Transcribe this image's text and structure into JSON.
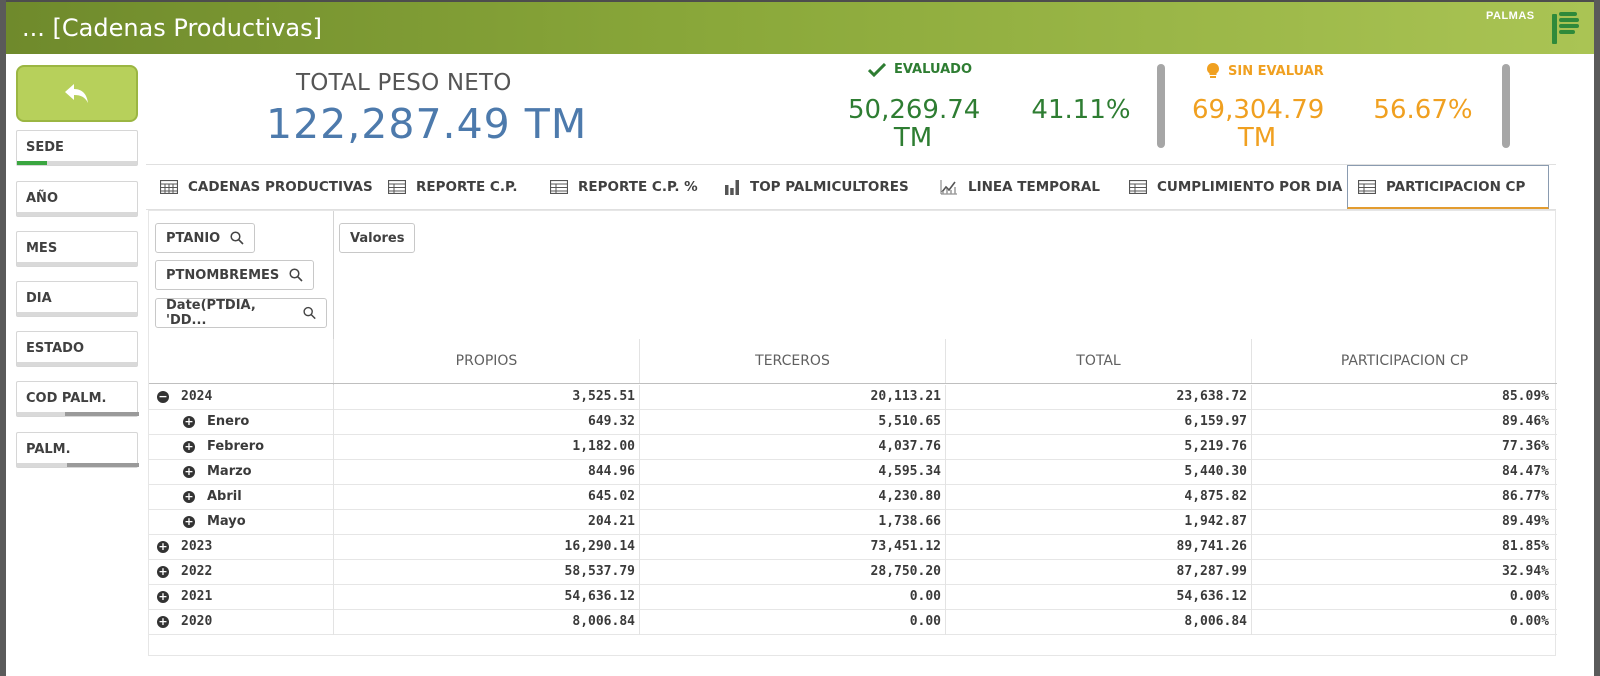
{
  "header": {
    "title": "... [Cadenas Productivas]",
    "brand": "PALMAS"
  },
  "colors": {
    "accent_green": "#b7d05b",
    "kpi_blue": "#4d7aac",
    "evaluado_green": "#2e7d32",
    "sin_evaluar_orange": "#f0a020",
    "tab_active_underline": "#e39c2f"
  },
  "back_button": {
    "icon": "back-arrow-icon"
  },
  "filters": [
    {
      "label": "SEDE"
    },
    {
      "label": "AÑO"
    },
    {
      "label": "MES"
    },
    {
      "label": "DIA"
    },
    {
      "label": "ESTADO"
    },
    {
      "label": "COD PALM."
    },
    {
      "label": "PALM."
    }
  ],
  "kpi": {
    "title": "TOTAL PESO NETO",
    "value": "122,287.49 TM",
    "evaluado": {
      "label": "EVALUADO",
      "value_line1": "50,269.74",
      "value_line2": "TM",
      "pct": "41.11%"
    },
    "sin_evaluar": {
      "label": "SIN EVALUAR",
      "value_line1": "69,304.79",
      "value_line2": "TM",
      "pct": "56.67%"
    }
  },
  "tabs": [
    {
      "label": "CADENAS PRODUCTIVAS",
      "icon": "table-icon"
    },
    {
      "label": "REPORTE C.P.",
      "icon": "table-icon"
    },
    {
      "label": "REPORTE C.P. %",
      "icon": "table-icon"
    },
    {
      "label": "TOP PALMICULTORES",
      "icon": "bar-chart-icon"
    },
    {
      "label": "LINEA TEMPORAL",
      "icon": "line-chart-icon"
    },
    {
      "label": "CUMPLIMIENTO POR DIA",
      "icon": "table-icon"
    },
    {
      "label": "PARTICIPACION CP",
      "icon": "table-icon",
      "active": true
    }
  ],
  "pivot": {
    "dimensions": [
      "PTANIO",
      "PTNOMBREMES",
      "Date(PTDIA, 'DD..."
    ],
    "values_chip": "Valores",
    "columns": [
      "PROPIOS",
      "TERCEROS",
      "TOTAL",
      "PARTICIPACION CP"
    ],
    "rows": [
      {
        "label": "2024",
        "level": 0,
        "expanded": true,
        "values": [
          "3,525.51",
          "20,113.21",
          "23,638.72",
          "85.09%"
        ]
      },
      {
        "label": "Enero",
        "level": 1,
        "expanded": false,
        "values": [
          "649.32",
          "5,510.65",
          "6,159.97",
          "89.46%"
        ]
      },
      {
        "label": "Febrero",
        "level": 1,
        "expanded": false,
        "values": [
          "1,182.00",
          "4,037.76",
          "5,219.76",
          "77.36%"
        ]
      },
      {
        "label": "Marzo",
        "level": 1,
        "expanded": false,
        "values": [
          "844.96",
          "4,595.34",
          "5,440.30",
          "84.47%"
        ]
      },
      {
        "label": "Abril",
        "level": 1,
        "expanded": false,
        "values": [
          "645.02",
          "4,230.80",
          "4,875.82",
          "86.77%"
        ]
      },
      {
        "label": "Mayo",
        "level": 1,
        "expanded": false,
        "values": [
          "204.21",
          "1,738.66",
          "1,942.87",
          "89.49%"
        ]
      },
      {
        "label": "2023",
        "level": 0,
        "expanded": false,
        "values": [
          "16,290.14",
          "73,451.12",
          "89,741.26",
          "81.85%"
        ]
      },
      {
        "label": "2022",
        "level": 0,
        "expanded": false,
        "values": [
          "58,537.79",
          "28,750.20",
          "87,287.99",
          "32.94%"
        ]
      },
      {
        "label": "2021",
        "level": 0,
        "expanded": false,
        "values": [
          "54,636.12",
          "0.00",
          "54,636.12",
          "0.00%"
        ]
      },
      {
        "label": "2020",
        "level": 0,
        "expanded": false,
        "values": [
          "8,006.84",
          "0.00",
          "8,006.84",
          "0.00%"
        ]
      }
    ]
  }
}
